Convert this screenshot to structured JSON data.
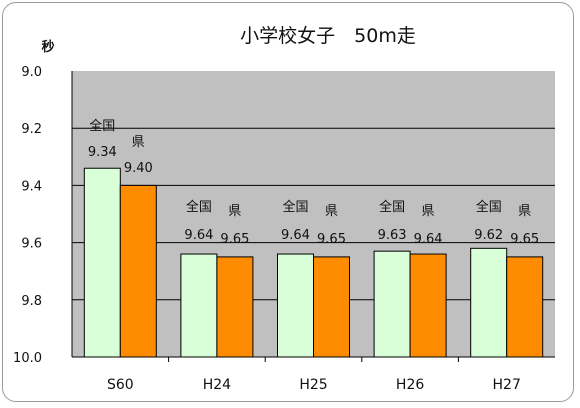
{
  "chart_data": {
    "type": "bar",
    "title": "小学校女子　50m走",
    "ylabel": "秒",
    "y_axis_inverted": true,
    "ylim": [
      9.0,
      10.0
    ],
    "ytick_labels": [
      "9.0",
      "9.2",
      "9.4",
      "9.6",
      "9.8",
      "10.0"
    ],
    "grid": true,
    "legend": "none",
    "categories": [
      "S60",
      "H24",
      "H25",
      "H26",
      "H27"
    ],
    "series": [
      {
        "name": "全国",
        "values": [
          9.34,
          9.64,
          9.64,
          9.63,
          9.62
        ],
        "color": "#d9ffd9",
        "labels": [
          "9.34",
          "9.64",
          "9.64",
          "9.63",
          "9.62"
        ]
      },
      {
        "name": "県",
        "values": [
          9.4,
          9.65,
          9.65,
          9.64,
          9.65
        ],
        "color": "#ff8c00",
        "labels": [
          "9.40",
          "9.65",
          "9.65",
          "9.64",
          "9.65"
        ]
      }
    ],
    "plot_background": "#c0c0c0"
  }
}
